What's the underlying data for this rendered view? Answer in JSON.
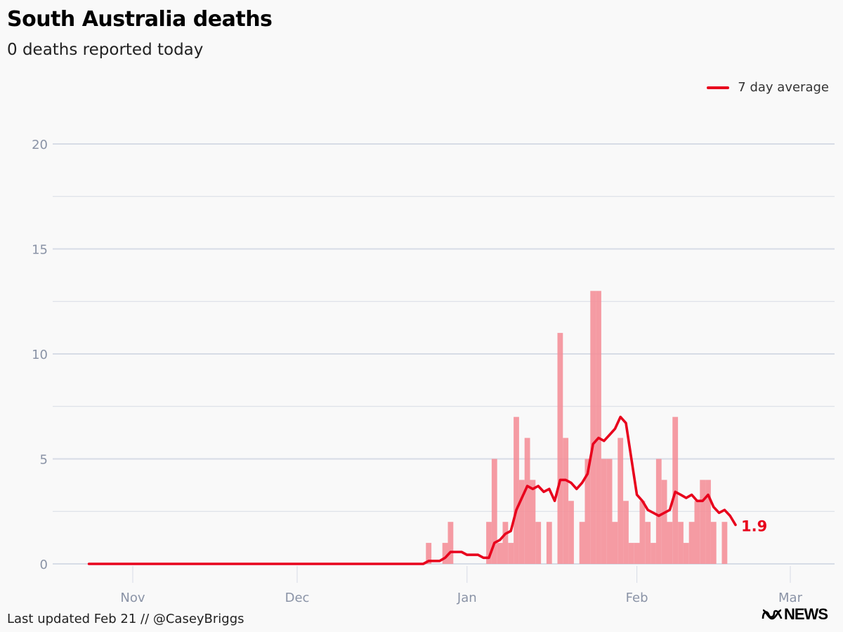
{
  "header": {
    "title": "South Australia deaths",
    "subtitle": "0 deaths reported today"
  },
  "legend": {
    "label": "7 day average",
    "color": "#e8001c"
  },
  "footer": {
    "updated": "Last updated Feb 21 // @CaseyBriggs"
  },
  "brand": {
    "text": "NEWS",
    "logo": "abc-logo-icon"
  },
  "colors": {
    "bar": "#f48b94",
    "line": "#e8001c",
    "grid": "#d7dce6",
    "axis": "#8a93a6"
  },
  "chart_data": {
    "type": "bar",
    "title": "South Australia deaths",
    "xlabel": "",
    "ylabel": "",
    "ylim": [
      0,
      20
    ],
    "yticks": [
      0,
      5,
      10,
      15,
      20
    ],
    "xticks": [
      {
        "label": "Nov",
        "day": 0
      },
      {
        "label": "Dec",
        "day": 30
      },
      {
        "label": "Jan",
        "day": 61
      },
      {
        "label": "Feb",
        "day": 92
      },
      {
        "label": "Mar",
        "day": 120
      }
    ],
    "start_day": -8,
    "days": [
      {
        "day": 54,
        "value": 1
      },
      {
        "day": 57,
        "value": 1
      },
      {
        "day": 58,
        "value": 2
      },
      {
        "day": 65,
        "value": 2
      },
      {
        "day": 66,
        "value": 5
      },
      {
        "day": 67,
        "value": 1
      },
      {
        "day": 68,
        "value": 2
      },
      {
        "day": 69,
        "value": 1
      },
      {
        "day": 70,
        "value": 7
      },
      {
        "day": 71,
        "value": 4
      },
      {
        "day": 72,
        "value": 6
      },
      {
        "day": 73,
        "value": 4
      },
      {
        "day": 74,
        "value": 2
      },
      {
        "day": 76,
        "value": 2
      },
      {
        "day": 78,
        "value": 11
      },
      {
        "day": 79,
        "value": 6
      },
      {
        "day": 80,
        "value": 3
      },
      {
        "day": 82,
        "value": 2
      },
      {
        "day": 83,
        "value": 5
      },
      {
        "day": 84,
        "value": 13
      },
      {
        "day": 85,
        "value": 13
      },
      {
        "day": 86,
        "value": 5
      },
      {
        "day": 87,
        "value": 5
      },
      {
        "day": 88,
        "value": 2
      },
      {
        "day": 89,
        "value": 6
      },
      {
        "day": 90,
        "value": 3
      },
      {
        "day": 91,
        "value": 1
      },
      {
        "day": 92,
        "value": 1
      },
      {
        "day": 93,
        "value": 3
      },
      {
        "day": 94,
        "value": 2
      },
      {
        "day": 95,
        "value": 1
      },
      {
        "day": 96,
        "value": 5
      },
      {
        "day": 97,
        "value": 4
      },
      {
        "day": 98,
        "value": 2
      },
      {
        "day": 99,
        "value": 7
      },
      {
        "day": 100,
        "value": 2
      },
      {
        "day": 101,
        "value": 1
      },
      {
        "day": 102,
        "value": 2
      },
      {
        "day": 103,
        "value": 3
      },
      {
        "day": 104,
        "value": 4
      },
      {
        "day": 105,
        "value": 4
      },
      {
        "day": 106,
        "value": 2
      },
      {
        "day": 107,
        "value": 0
      },
      {
        "day": 108,
        "value": 2
      }
    ],
    "average_series": {
      "name": "7 day average",
      "points": [
        [
          -8,
          0
        ],
        [
          53,
          0
        ],
        [
          54,
          0.14
        ],
        [
          56,
          0.14
        ],
        [
          57,
          0.29
        ],
        [
          58,
          0.57
        ],
        [
          60,
          0.57
        ],
        [
          61,
          0.43
        ],
        [
          63,
          0.43
        ],
        [
          64,
          0.29
        ],
        [
          65,
          0.29
        ],
        [
          66,
          1.0
        ],
        [
          67,
          1.14
        ],
        [
          68,
          1.43
        ],
        [
          69,
          1.57
        ],
        [
          70,
          2.57
        ],
        [
          71,
          3.14
        ],
        [
          72,
          3.71
        ],
        [
          73,
          3.57
        ],
        [
          74,
          3.71
        ],
        [
          75,
          3.43
        ],
        [
          76,
          3.57
        ],
        [
          77,
          3.0
        ],
        [
          78,
          4.0
        ],
        [
          79,
          4.0
        ],
        [
          80,
          3.86
        ],
        [
          81,
          3.57
        ],
        [
          82,
          3.86
        ],
        [
          83,
          4.29
        ],
        [
          84,
          5.71
        ],
        [
          85,
          6.0
        ],
        [
          86,
          5.86
        ],
        [
          87,
          6.14
        ],
        [
          88,
          6.43
        ],
        [
          89,
          7.0
        ],
        [
          90,
          6.71
        ],
        [
          91,
          5.0
        ],
        [
          92,
          3.29
        ],
        [
          93,
          3.0
        ],
        [
          94,
          2.57
        ],
        [
          95,
          2.43
        ],
        [
          96,
          2.29
        ],
        [
          97,
          2.43
        ],
        [
          98,
          2.57
        ],
        [
          99,
          3.43
        ],
        [
          100,
          3.29
        ],
        [
          101,
          3.14
        ],
        [
          102,
          3.29
        ],
        [
          103,
          3.0
        ],
        [
          104,
          3.0
        ],
        [
          105,
          3.29
        ],
        [
          106,
          2.71
        ],
        [
          107,
          2.43
        ],
        [
          108,
          2.57
        ],
        [
          109,
          2.29
        ],
        [
          110,
          1.86
        ]
      ],
      "end_label": "1.9"
    }
  }
}
